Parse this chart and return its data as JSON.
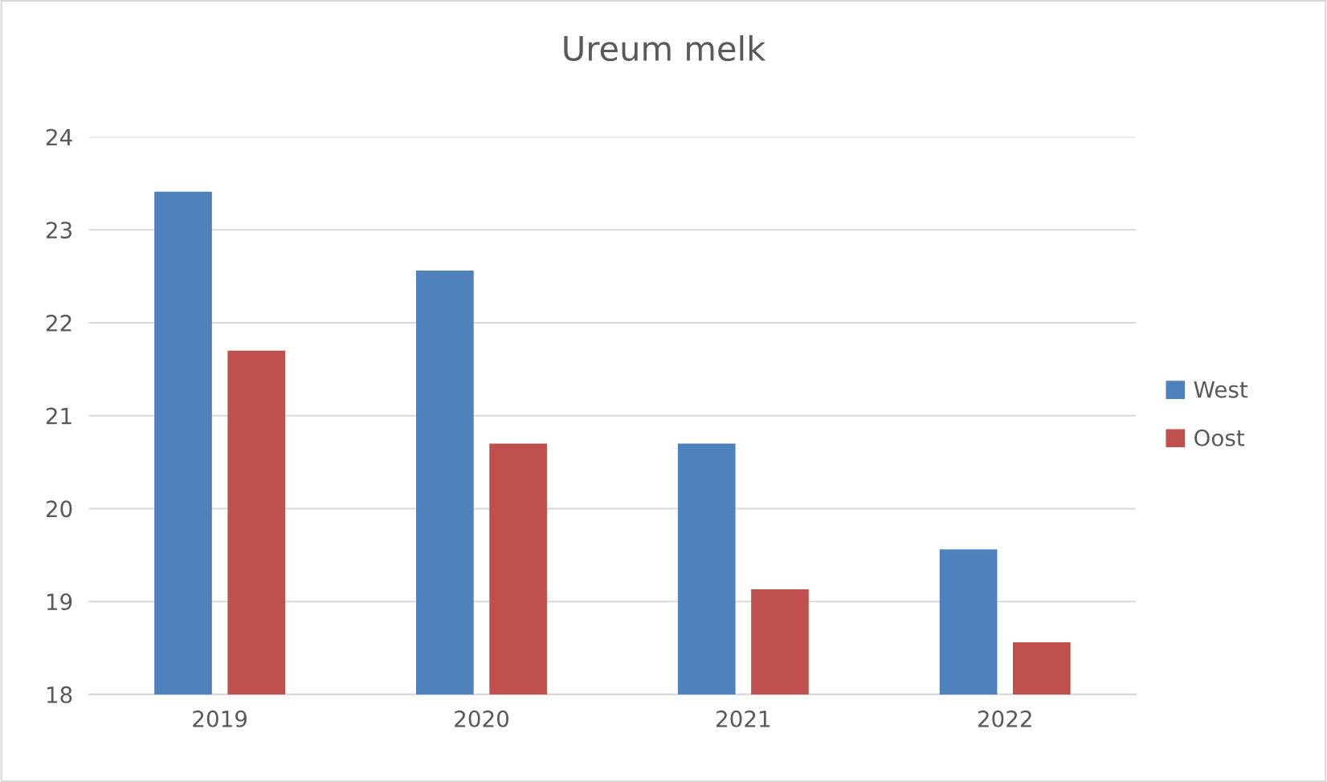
{
  "chart_data": {
    "type": "bar",
    "title": "Ureum melk",
    "categories": [
      "2019",
      "2020",
      "2021",
      "2022"
    ],
    "series": [
      {
        "name": "West",
        "color": "#4f81bd",
        "values": [
          23.41,
          22.56,
          20.7,
          19.56
        ]
      },
      {
        "name": "Oost",
        "color": "#c0504d",
        "values": [
          21.7,
          20.7,
          19.13,
          18.56
        ]
      }
    ],
    "ylim": [
      18,
      24
    ],
    "yticks": [
      18,
      19,
      20,
      21,
      22,
      23,
      24
    ],
    "grid": "y",
    "legend": "right"
  }
}
